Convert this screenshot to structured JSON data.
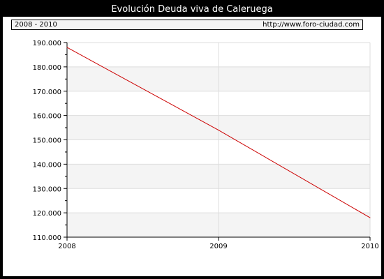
{
  "title": "Evolución Deuda viva de Caleruega",
  "infobar": {
    "range": "2008 - 2010",
    "url": "http://www.foro-ciudad.com"
  },
  "colors": {
    "line": "#cc0000",
    "band": "#f4f4f4",
    "grid": "#dddddd"
  },
  "chart_data": {
    "type": "line",
    "title": "Evolución Deuda viva de Caleruega",
    "xlabel": "",
    "ylabel": "",
    "x": [
      2008,
      2009,
      2010
    ],
    "y": [
      188000,
      154000,
      118000
    ],
    "ylim": [
      110000,
      190000
    ],
    "yticks": [
      110000,
      120000,
      130000,
      140000,
      150000,
      160000,
      170000,
      180000,
      190000
    ],
    "ytick_labels": [
      "110.000",
      "120.000",
      "130.000",
      "140.000",
      "150.000",
      "160.000",
      "170.000",
      "180.000",
      "190.000"
    ],
    "xticks": [
      "2008",
      "2009",
      "2010"
    ],
    "grid": true,
    "legend": "none"
  }
}
